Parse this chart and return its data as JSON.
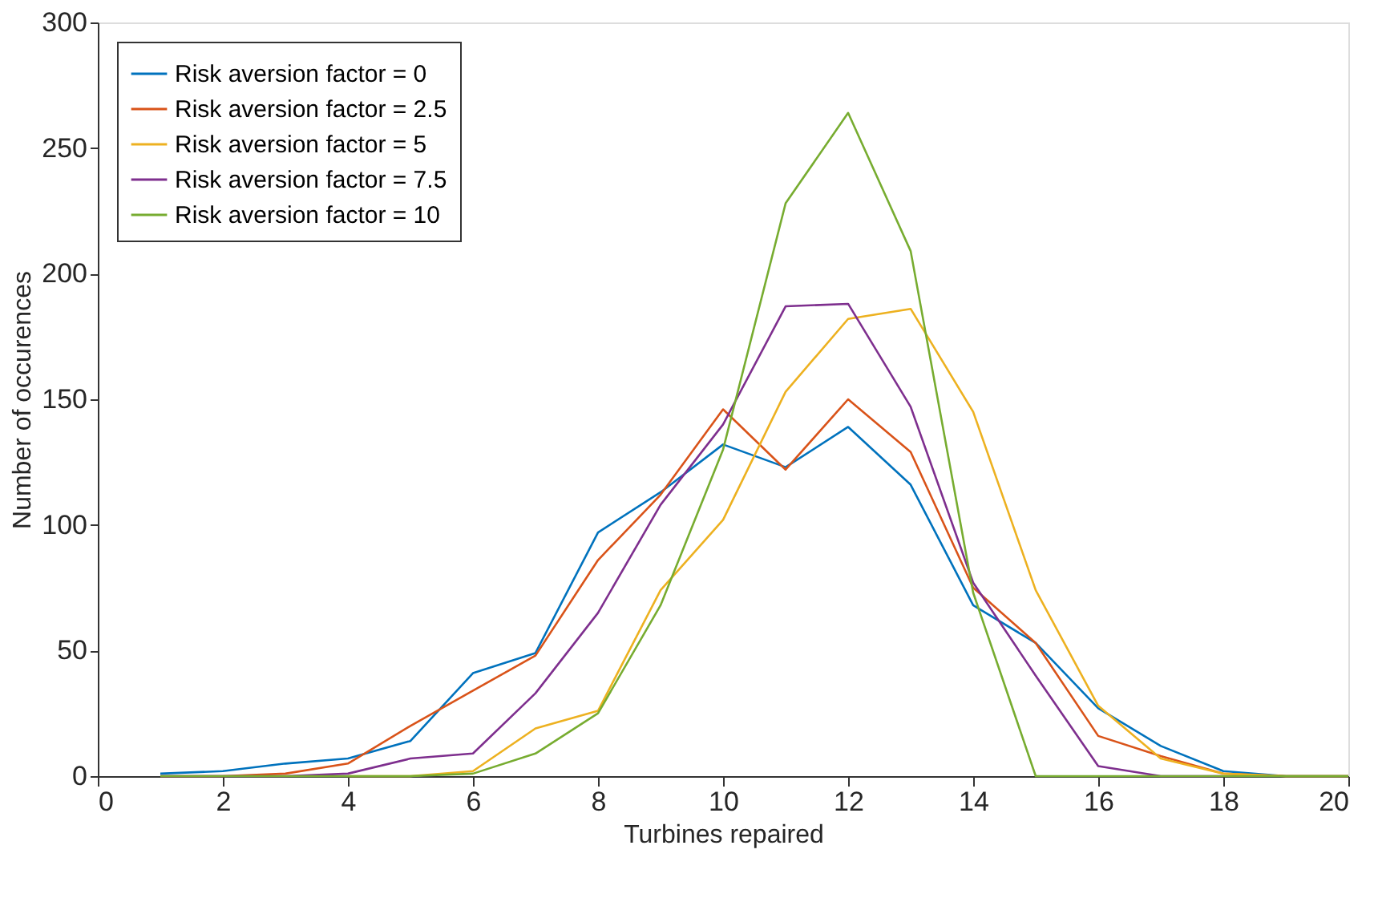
{
  "chart_data": {
    "type": "line",
    "xlabel": "Turbines repaired",
    "ylabel": "Number of occurences",
    "x": [
      1,
      2,
      3,
      4,
      5,
      6,
      7,
      8,
      9,
      10,
      11,
      12,
      13,
      14,
      15,
      16,
      17,
      18,
      19,
      20
    ],
    "series": [
      {
        "name": "Risk aversion factor = 0",
        "color": "#0072bd",
        "values": [
          1,
          2,
          5,
          7,
          14,
          41,
          49,
          97,
          113,
          132,
          123,
          139,
          116,
          68,
          53,
          27,
          12,
          2,
          0,
          0
        ]
      },
      {
        "name": "Risk aversion factor = 2.5",
        "color": "#d95319",
        "values": [
          0,
          0,
          1,
          5,
          20,
          34,
          48,
          86,
          112,
          146,
          122,
          150,
          129,
          75,
          53,
          16,
          8,
          1,
          0,
          0
        ]
      },
      {
        "name": "Risk aversion factor = 5",
        "color": "#edb120",
        "values": [
          null,
          null,
          null,
          0,
          0,
          2,
          19,
          26,
          74,
          102,
          153,
          182,
          186,
          145,
          74,
          28,
          7,
          1,
          0,
          0
        ]
      },
      {
        "name": "Risk aversion factor = 7.5",
        "color": "#7e2f8e",
        "values": [
          0,
          0,
          0,
          1,
          7,
          9,
          33,
          65,
          108,
          140,
          187,
          188,
          147,
          77,
          40,
          4,
          0,
          0,
          null,
          null
        ]
      },
      {
        "name": "Risk aversion factor = 10",
        "color": "#77ac30",
        "values": [
          0,
          0,
          0,
          0,
          0,
          1,
          9,
          25,
          68,
          130,
          228,
          264,
          209,
          73,
          0,
          0,
          0,
          0,
          0,
          0
        ]
      }
    ],
    "xlim": [
      0,
      20
    ],
    "xticks": [
      0,
      2,
      4,
      6,
      8,
      10,
      12,
      14,
      16,
      18,
      20
    ],
    "ylim": [
      0,
      300
    ],
    "yticks": [
      0,
      50,
      100,
      150,
      200,
      250,
      300
    ],
    "grid": false,
    "legend": "top left",
    "marker": "none",
    "line_style": "solid"
  }
}
